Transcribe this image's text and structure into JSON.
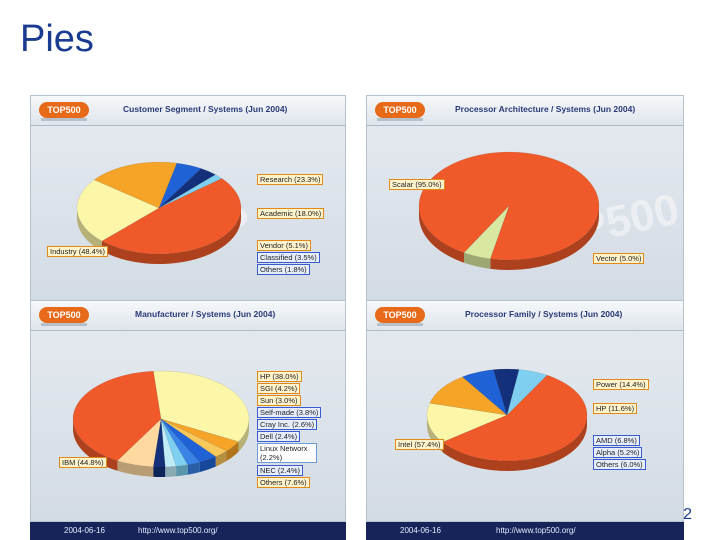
{
  "slide": {
    "title": "Pies",
    "page_number": "2"
  },
  "logo_text": "TOP500",
  "footer": {
    "date": "2004-06-16",
    "url": "http://www.top500.org/"
  },
  "colors": {
    "orange_red": "#f05a2a",
    "light_yellow": "#fbf6a8",
    "orange": "#f6a428",
    "blue": "#1f62d6",
    "dark_blue": "#14307a",
    "cyan": "#7fd0f0",
    "pale_green": "#d8e8a0"
  },
  "chart_data": [
    {
      "type": "pie",
      "title": "Customer Segment / Systems (Jun 2004)",
      "series": [
        {
          "name": "Industry (48.4%)",
          "value": 48.4,
          "color": "#f05a2a"
        },
        {
          "name": "Research (23.3%)",
          "value": 23.3,
          "color": "#fbf6a8"
        },
        {
          "name": "Academic (18.0%)",
          "value": 18.0,
          "color": "#f6a428"
        },
        {
          "name": "Vendor (5.1%)",
          "value": 5.1,
          "color": "#1f62d6"
        },
        {
          "name": "Classified (3.5%)",
          "value": 3.5,
          "color": "#14307a"
        },
        {
          "name": "Others (1.8%)",
          "value": 1.8,
          "color": "#7fd0f0"
        }
      ]
    },
    {
      "type": "pie",
      "title": "Processor Architecture / Systems (Jun 2004)",
      "series": [
        {
          "name": "Scalar (95.0%)",
          "value": 95.0,
          "color": "#f05a2a"
        },
        {
          "name": "Vector (5.0%)",
          "value": 5.0,
          "color": "#d8e8a0"
        }
      ]
    },
    {
      "type": "pie",
      "title": "Manufacturer / Systems (Jun 2004)",
      "series": [
        {
          "name": "HP (38.0%)",
          "value": 38.0,
          "color": "#fbf6a8"
        },
        {
          "name": "SGI (4.2%)",
          "value": 4.2,
          "color": "#f6a428"
        },
        {
          "name": "Sun (3.0%)",
          "value": 3.0,
          "color": "#f8c85a"
        },
        {
          "name": "Self-made (3.8%)",
          "value": 3.8,
          "color": "#1f62d6"
        },
        {
          "name": "Cray Inc. (2.6%)",
          "value": 2.6,
          "color": "#3a84e8"
        },
        {
          "name": "Dell (2.4%)",
          "value": 2.4,
          "color": "#7fd0f0"
        },
        {
          "name": "Linux Networx (2.2%)",
          "value": 2.2,
          "color": "#c0ecf8"
        },
        {
          "name": "NEC (2.4%)",
          "value": 2.4,
          "color": "#14307a"
        },
        {
          "name": "Others (7.6%)",
          "value": 7.6,
          "color": "#ffd9a0"
        },
        {
          "name": "IBM (44.8%)",
          "value": 44.8,
          "color": "#f05a2a"
        }
      ]
    },
    {
      "type": "pie",
      "title": "Processor Family / Systems (Jun 2004)",
      "series": [
        {
          "name": "Intel (57.4%)",
          "value": 57.4,
          "color": "#f05a2a"
        },
        {
          "name": "Power (14.4%)",
          "value": 14.4,
          "color": "#fbf6a8"
        },
        {
          "name": "HP (11.6%)",
          "value": 11.6,
          "color": "#f6a428"
        },
        {
          "name": "AMD (6.8%)",
          "value": 6.8,
          "color": "#1f62d6"
        },
        {
          "name": "Alpha (5.2%)",
          "value": 5.2,
          "color": "#14307a"
        },
        {
          "name": "Others (6.0%)",
          "value": 6.0,
          "color": "#7fd0f0"
        }
      ]
    }
  ]
}
